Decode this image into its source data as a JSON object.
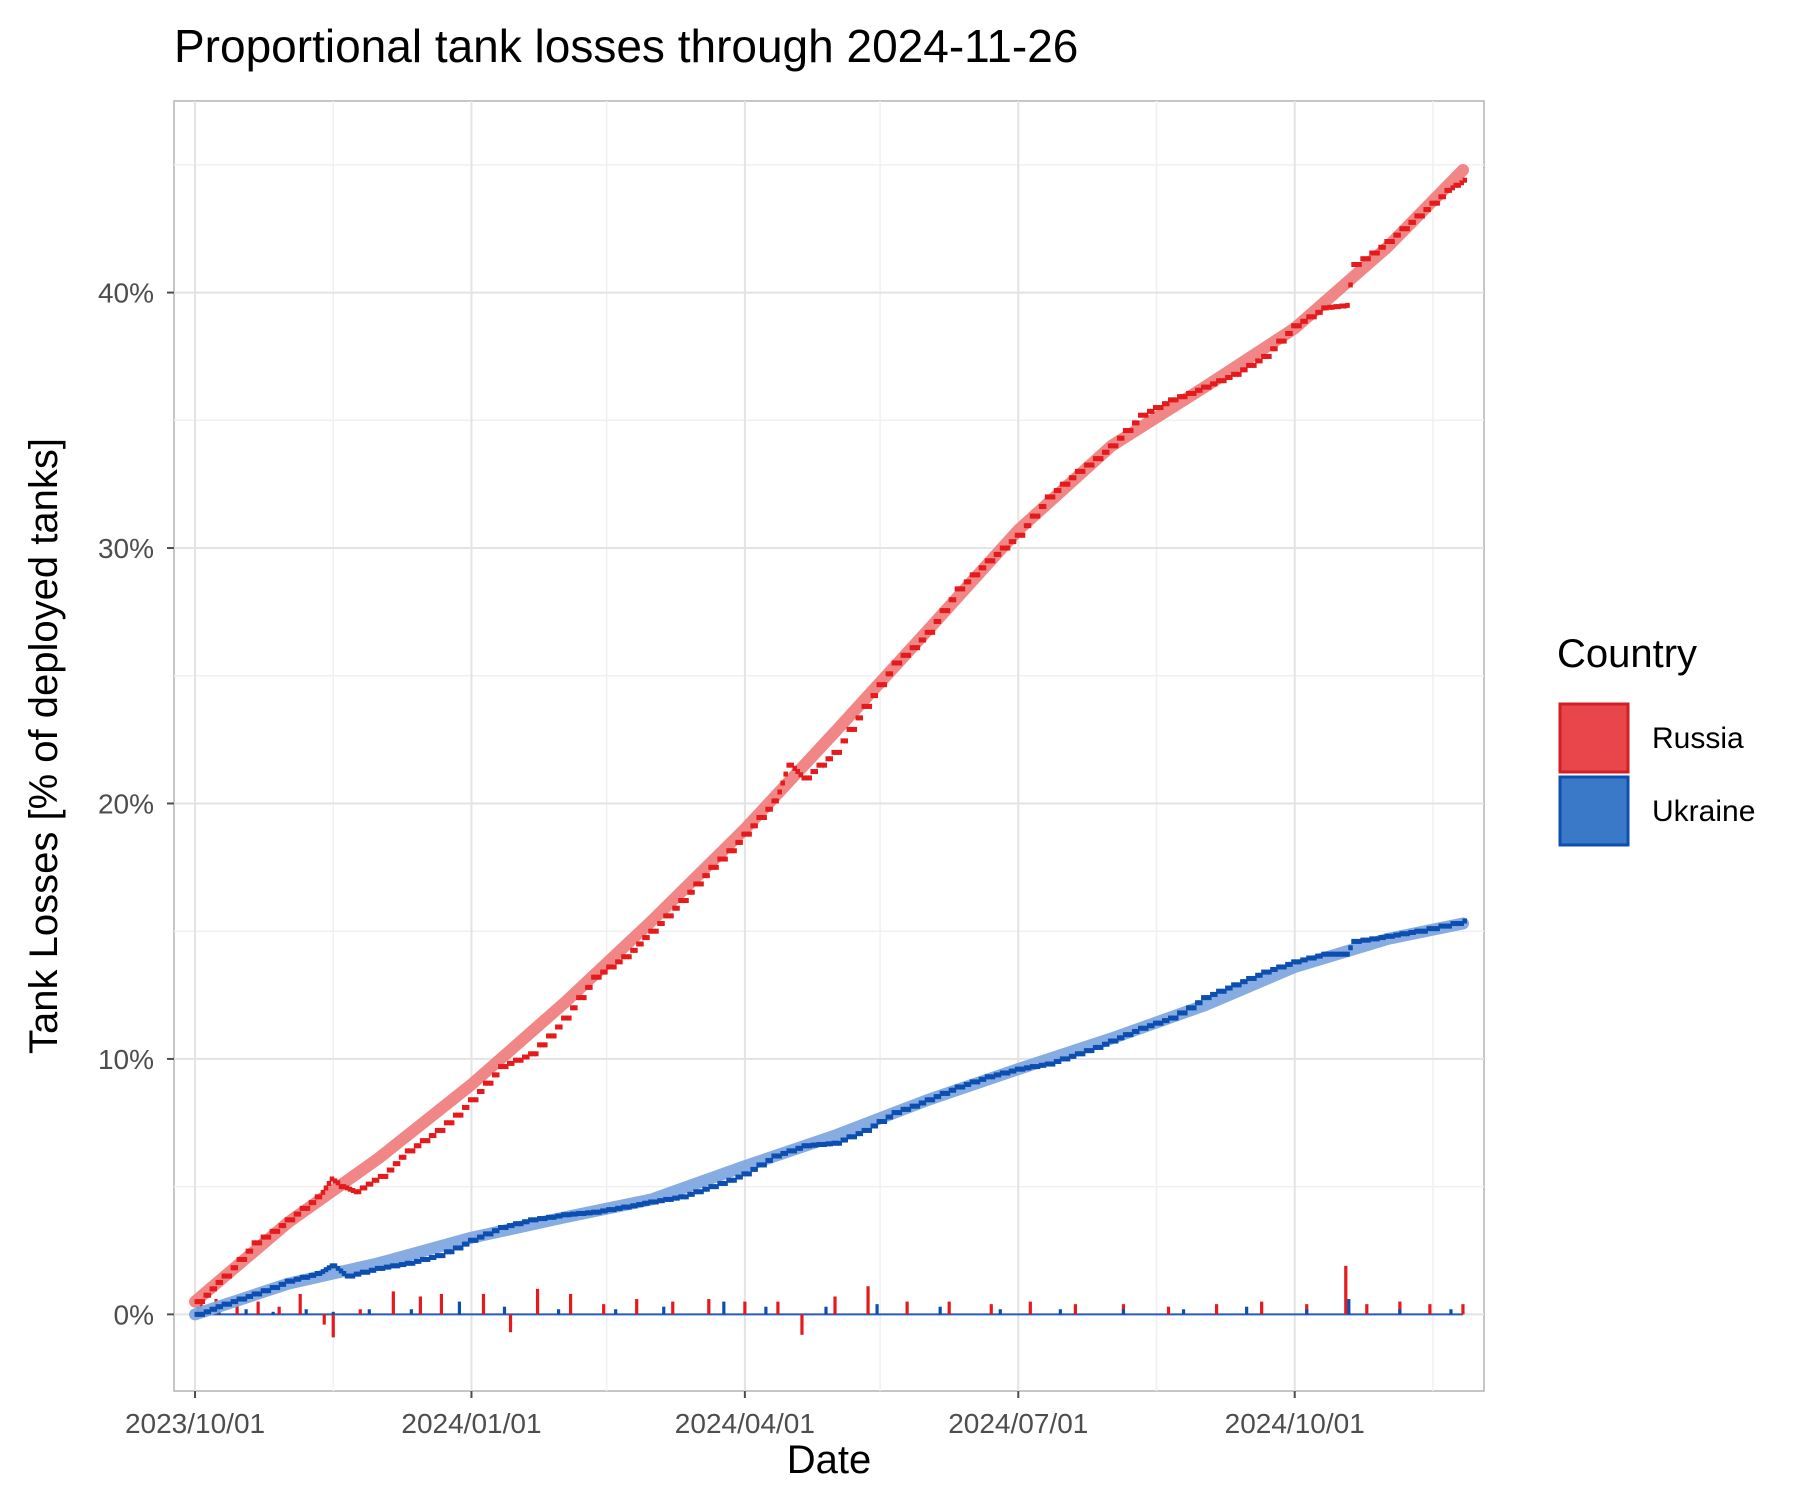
{
  "chart_data": {
    "type": "line",
    "title": "Proportional tank losses through 2024-11-26",
    "xlabel": "Date",
    "ylabel": "Tank Losses [% of deployed tanks]",
    "x_ticks": [
      "2023/10/01",
      "2024/01/01",
      "2024/04/01",
      "2024/07/01",
      "2024/10/01"
    ],
    "y_ticks": [
      "0%",
      "10%",
      "20%",
      "30%",
      "40%"
    ],
    "y_tick_values": [
      0,
      10,
      20,
      30,
      40
    ],
    "xlim": [
      "2023-09-24",
      "2024-12-03"
    ],
    "ylim": [
      -3,
      47.5
    ],
    "legend": {
      "title": "Country",
      "position": "right",
      "entries": [
        {
          "name": "Russia",
          "color": "#e8464b"
        },
        {
          "name": "Ukraine",
          "color": "#3a78c8"
        }
      ]
    },
    "series": [
      {
        "name": "Russia",
        "color": "#e41a1c",
        "trend_color": "#f08080",
        "points": [
          [
            "2023-10-01",
            0.5
          ],
          [
            "2023-10-10",
            1.5
          ],
          [
            "2023-10-20",
            2.8
          ],
          [
            "2023-10-31",
            3.7
          ],
          [
            "2023-11-10",
            4.6
          ],
          [
            "2023-11-15",
            5.3
          ],
          [
            "2023-11-18",
            5.0
          ],
          [
            "2023-11-23",
            4.8
          ],
          [
            "2023-12-01",
            5.4
          ],
          [
            "2023-12-10",
            6.4
          ],
          [
            "2023-12-20",
            7.2
          ],
          [
            "2023-12-31",
            8.4
          ],
          [
            "2024-01-10",
            9.7
          ],
          [
            "2024-01-20",
            10.2
          ],
          [
            "2024-01-31",
            11.6
          ],
          [
            "2024-02-10",
            13.2
          ],
          [
            "2024-02-20",
            14.0
          ],
          [
            "2024-02-29",
            15.0
          ],
          [
            "2024-03-10",
            16.2
          ],
          [
            "2024-03-20",
            17.5
          ],
          [
            "2024-03-31",
            18.8
          ],
          [
            "2024-04-10",
            20.1
          ],
          [
            "2024-04-15",
            21.5
          ],
          [
            "2024-04-20",
            21.0
          ],
          [
            "2024-04-30",
            22.0
          ],
          [
            "2024-05-10",
            23.8
          ],
          [
            "2024-05-20",
            25.5
          ],
          [
            "2024-05-31",
            26.7
          ],
          [
            "2024-06-10",
            28.4
          ],
          [
            "2024-06-20",
            29.5
          ],
          [
            "2024-06-30",
            30.5
          ],
          [
            "2024-07-10",
            32.0
          ],
          [
            "2024-07-20",
            33.0
          ],
          [
            "2024-07-31",
            34.0
          ],
          [
            "2024-08-10",
            35.2
          ],
          [
            "2024-08-20",
            35.8
          ],
          [
            "2024-08-31",
            36.3
          ],
          [
            "2024-09-10",
            36.8
          ],
          [
            "2024-09-20",
            37.5
          ],
          [
            "2024-09-30",
            38.7
          ],
          [
            "2024-10-10",
            39.4
          ],
          [
            "2024-10-18",
            39.5
          ],
          [
            "2024-10-20",
            41.1
          ],
          [
            "2024-10-31",
            42.0
          ],
          [
            "2024-11-10",
            43.0
          ],
          [
            "2024-11-20",
            44.0
          ],
          [
            "2024-11-26",
            44.4
          ]
        ],
        "trend": [
          [
            "2023-10-01",
            0.5
          ],
          [
            "2023-11-01",
            3.6
          ],
          [
            "2023-12-01",
            6.1
          ],
          [
            "2024-01-01",
            9.0
          ],
          [
            "2024-02-01",
            12.2
          ],
          [
            "2024-03-01",
            15.4
          ],
          [
            "2024-04-01",
            19.0
          ],
          [
            "2024-05-01",
            22.8
          ],
          [
            "2024-06-01",
            26.8
          ],
          [
            "2024-07-01",
            30.7
          ],
          [
            "2024-08-01",
            34.0
          ],
          [
            "2024-09-01",
            36.3
          ],
          [
            "2024-10-01",
            38.6
          ],
          [
            "2024-11-01",
            41.8
          ],
          [
            "2024-11-26",
            44.8
          ]
        ],
        "daily_changes": [
          [
            "2023-10-03",
            0.5
          ],
          [
            "2023-10-08",
            0.6
          ],
          [
            "2023-10-15",
            0.4
          ],
          [
            "2023-10-22",
            0.5
          ],
          [
            "2023-10-29",
            0.3
          ],
          [
            "2023-11-05",
            0.8
          ],
          [
            "2023-11-13",
            -0.4
          ],
          [
            "2023-11-16",
            -0.9
          ],
          [
            "2023-11-25",
            0.2
          ],
          [
            "2023-12-06",
            0.9
          ],
          [
            "2023-12-15",
            0.7
          ],
          [
            "2023-12-22",
            0.8
          ],
          [
            "2024-01-05",
            0.8
          ],
          [
            "2024-01-14",
            -0.7
          ],
          [
            "2024-01-23",
            1.0
          ],
          [
            "2024-02-03",
            0.8
          ],
          [
            "2024-02-14",
            0.4
          ],
          [
            "2024-02-25",
            0.6
          ],
          [
            "2024-03-08",
            0.5
          ],
          [
            "2024-03-20",
            0.6
          ],
          [
            "2024-04-01",
            0.5
          ],
          [
            "2024-04-12",
            0.5
          ],
          [
            "2024-04-20",
            -0.8
          ],
          [
            "2024-05-01",
            0.7
          ],
          [
            "2024-05-12",
            1.1
          ],
          [
            "2024-05-25",
            0.5
          ],
          [
            "2024-06-08",
            0.5
          ],
          [
            "2024-06-22",
            0.4
          ],
          [
            "2024-07-05",
            0.5
          ],
          [
            "2024-07-20",
            0.4
          ],
          [
            "2024-08-05",
            0.4
          ],
          [
            "2024-08-20",
            0.3
          ],
          [
            "2024-09-05",
            0.4
          ],
          [
            "2024-09-20",
            0.5
          ],
          [
            "2024-10-05",
            0.4
          ],
          [
            "2024-10-18",
            1.9
          ],
          [
            "2024-10-25",
            0.4
          ],
          [
            "2024-11-05",
            0.5
          ],
          [
            "2024-11-15",
            0.4
          ],
          [
            "2024-11-26",
            0.4
          ]
        ]
      },
      {
        "name": "Ukraine",
        "color": "#0c4fb0",
        "trend_color": "#80a8e0",
        "points": [
          [
            "2023-10-01",
            0.0
          ],
          [
            "2023-10-10",
            0.4
          ],
          [
            "2023-10-20",
            0.8
          ],
          [
            "2023-10-31",
            1.3
          ],
          [
            "2023-11-10",
            1.6
          ],
          [
            "2023-11-15",
            1.9
          ],
          [
            "2023-11-20",
            1.5
          ],
          [
            "2023-11-30",
            1.8
          ],
          [
            "2023-12-10",
            2.0
          ],
          [
            "2023-12-20",
            2.3
          ],
          [
            "2023-12-31",
            2.9
          ],
          [
            "2024-01-10",
            3.4
          ],
          [
            "2024-01-20",
            3.7
          ],
          [
            "2024-01-31",
            3.9
          ],
          [
            "2024-02-10",
            4.0
          ],
          [
            "2024-02-20",
            4.2
          ],
          [
            "2024-02-29",
            4.4
          ],
          [
            "2024-03-10",
            4.6
          ],
          [
            "2024-03-20",
            5.0
          ],
          [
            "2024-03-31",
            5.5
          ],
          [
            "2024-04-10",
            6.2
          ],
          [
            "2024-04-20",
            6.6
          ],
          [
            "2024-04-30",
            6.7
          ],
          [
            "2024-05-10",
            7.2
          ],
          [
            "2024-05-20",
            7.9
          ],
          [
            "2024-05-31",
            8.4
          ],
          [
            "2024-06-10",
            8.9
          ],
          [
            "2024-06-20",
            9.3
          ],
          [
            "2024-06-30",
            9.6
          ],
          [
            "2024-07-10",
            9.8
          ],
          [
            "2024-07-20",
            10.2
          ],
          [
            "2024-07-31",
            10.7
          ],
          [
            "2024-08-10",
            11.2
          ],
          [
            "2024-08-20",
            11.6
          ],
          [
            "2024-08-31",
            12.4
          ],
          [
            "2024-09-10",
            12.9
          ],
          [
            "2024-09-20",
            13.4
          ],
          [
            "2024-09-30",
            13.8
          ],
          [
            "2024-10-10",
            14.1
          ],
          [
            "2024-10-18",
            14.1
          ],
          [
            "2024-10-20",
            14.6
          ],
          [
            "2024-10-31",
            14.8
          ],
          [
            "2024-11-10",
            15.0
          ],
          [
            "2024-11-26",
            15.4
          ]
        ],
        "trend": [
          [
            "2023-10-01",
            0.0
          ],
          [
            "2023-11-01",
            1.2
          ],
          [
            "2023-12-01",
            2.0
          ],
          [
            "2024-01-01",
            3.0
          ],
          [
            "2024-02-01",
            3.8
          ],
          [
            "2024-03-01",
            4.5
          ],
          [
            "2024-04-01",
            5.8
          ],
          [
            "2024-05-01",
            7.0
          ],
          [
            "2024-06-01",
            8.4
          ],
          [
            "2024-07-01",
            9.6
          ],
          [
            "2024-08-01",
            10.8
          ],
          [
            "2024-09-01",
            12.1
          ],
          [
            "2024-10-01",
            13.6
          ],
          [
            "2024-11-01",
            14.7
          ],
          [
            "2024-11-26",
            15.3
          ]
        ],
        "daily_changes": [
          [
            "2023-10-02",
            0.3
          ],
          [
            "2023-10-09",
            0.2
          ],
          [
            "2023-10-18",
            0.2
          ],
          [
            "2023-10-27",
            0.1
          ],
          [
            "2023-11-07",
            0.2
          ],
          [
            "2023-11-16",
            0.1
          ],
          [
            "2023-11-28",
            0.2
          ],
          [
            "2023-12-12",
            0.2
          ],
          [
            "2023-12-28",
            0.5
          ],
          [
            "2024-01-12",
            0.3
          ],
          [
            "2024-01-30",
            0.2
          ],
          [
            "2024-02-18",
            0.2
          ],
          [
            "2024-03-05",
            0.3
          ],
          [
            "2024-03-25",
            0.5
          ],
          [
            "2024-04-08",
            0.3
          ],
          [
            "2024-04-28",
            0.3
          ],
          [
            "2024-05-15",
            0.4
          ],
          [
            "2024-06-05",
            0.3
          ],
          [
            "2024-06-25",
            0.2
          ],
          [
            "2024-07-15",
            0.2
          ],
          [
            "2024-08-05",
            0.2
          ],
          [
            "2024-08-25",
            0.2
          ],
          [
            "2024-09-15",
            0.3
          ],
          [
            "2024-10-05",
            0.2
          ],
          [
            "2024-10-19",
            0.6
          ],
          [
            "2024-11-05",
            0.2
          ],
          [
            "2024-11-22",
            0.2
          ]
        ]
      }
    ]
  }
}
